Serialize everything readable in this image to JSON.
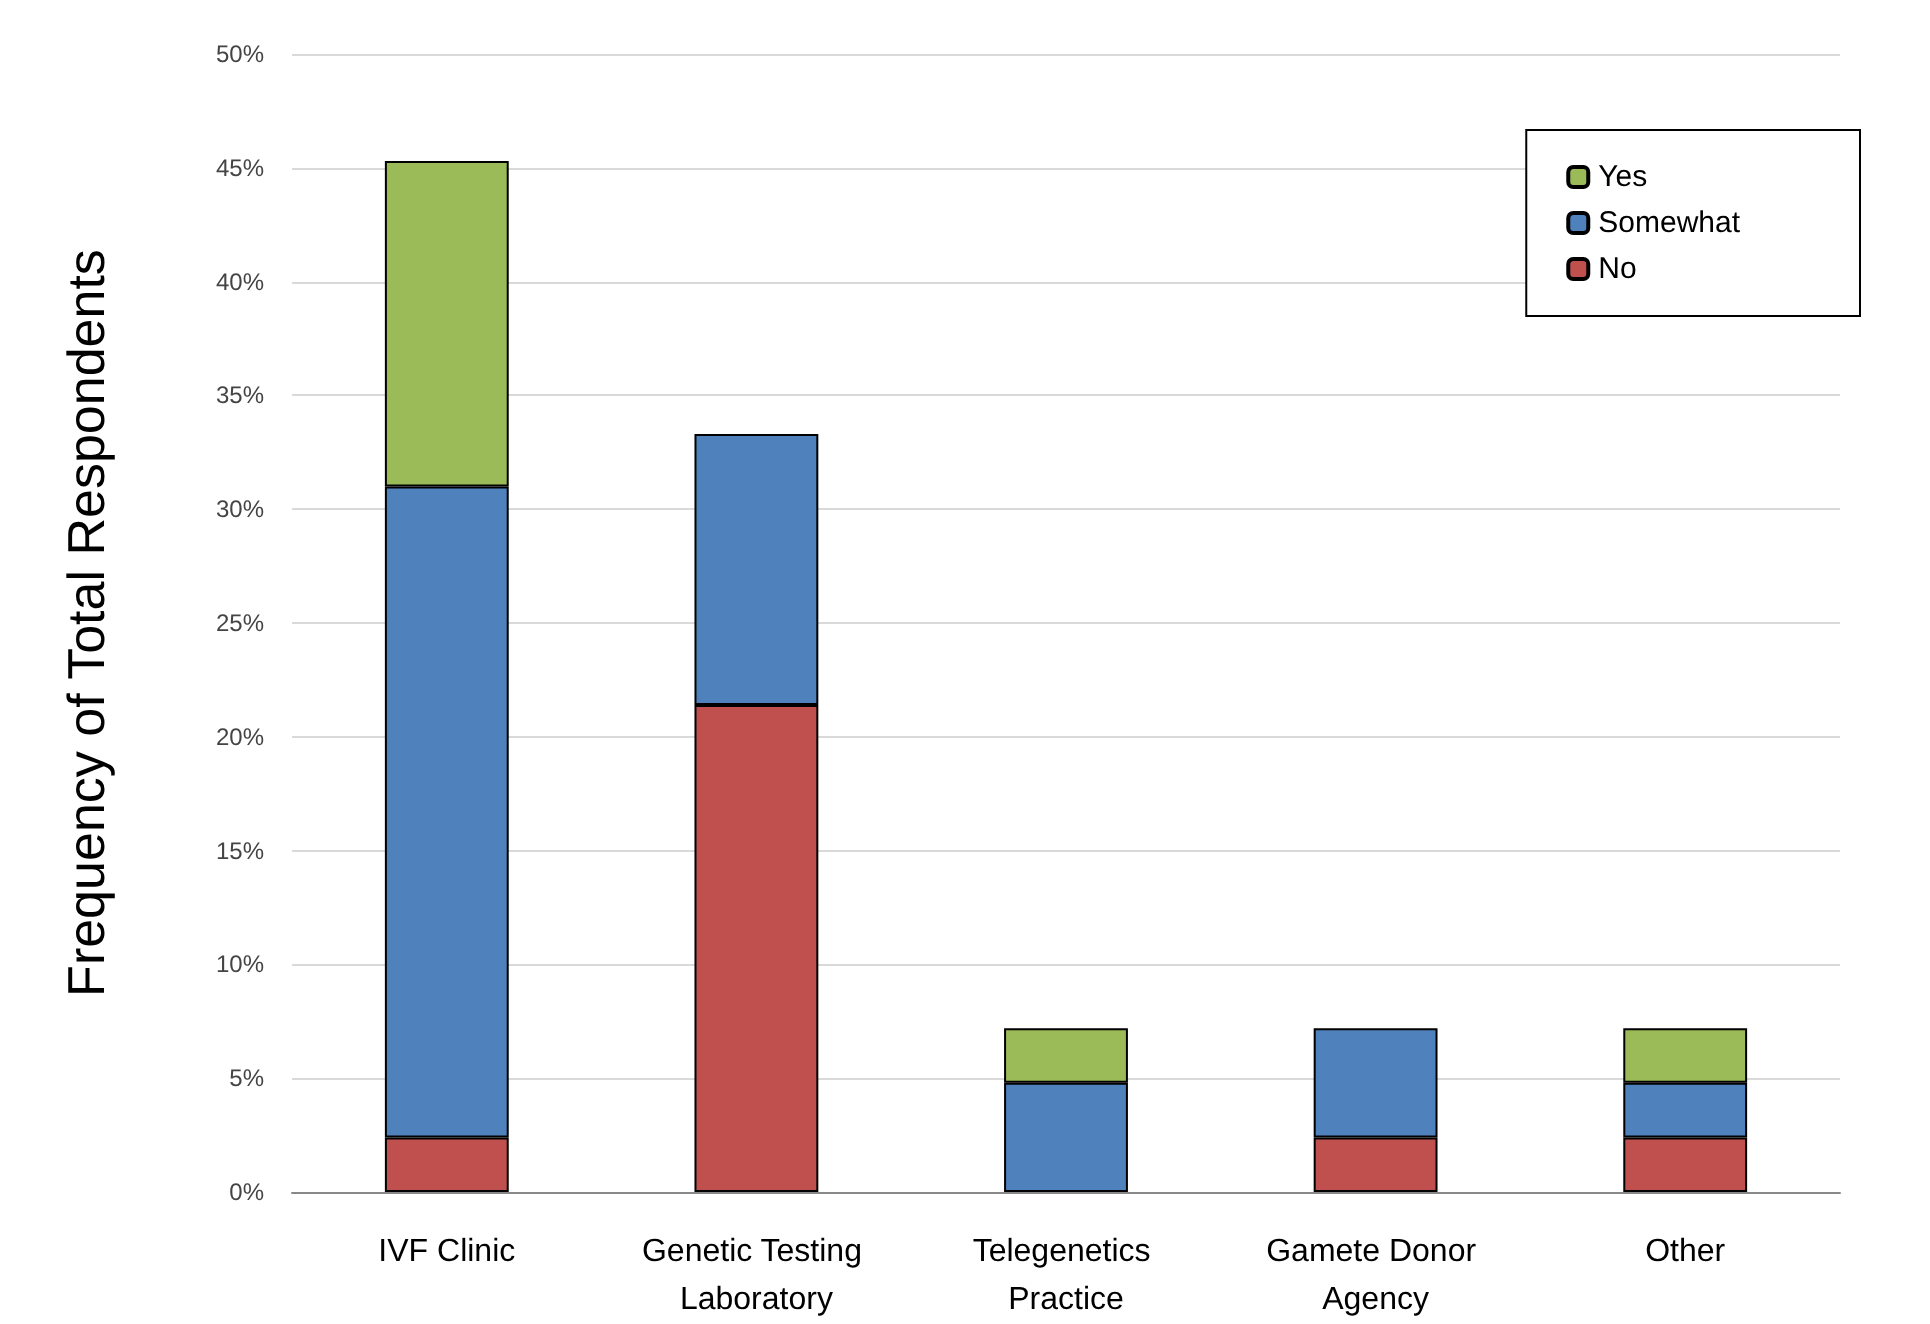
{
  "chart_data": {
    "type": "bar",
    "ylabel": "Frequency of Total Respondents",
    "categories": [
      "IVF Clinic",
      "Genetic Testing Laboratory",
      "Telegenetics Practice",
      "Gamete Donor Agency",
      "Other"
    ],
    "series": [
      {
        "name": "No",
        "color": "#c0504d",
        "values": [
          2.4,
          21.4,
          null,
          2.4,
          2.4
        ]
      },
      {
        "name": "Somewhat",
        "color": "#4f81bd",
        "values": [
          28.6,
          11.9,
          4.8,
          4.8,
          2.4
        ]
      },
      {
        "name": "Yes",
        "color": "#9bbb59",
        "values": [
          14.3,
          null,
          2.4,
          null,
          2.4
        ]
      }
    ],
    "stacked": true,
    "ylim": [
      0,
      50
    ],
    "yticks": [
      {
        "value": 0,
        "label": "0%"
      },
      {
        "value": 5,
        "label": "5%"
      },
      {
        "value": 10,
        "label": "10%"
      },
      {
        "value": 15,
        "label": "15%"
      },
      {
        "value": 20,
        "label": "20%"
      },
      {
        "value": 25,
        "label": "25%"
      },
      {
        "value": 30,
        "label": "30%"
      },
      {
        "value": 35,
        "label": "35%"
      },
      {
        "value": 40,
        "label": "40%"
      },
      {
        "value": 45,
        "label": "45%"
      },
      {
        "value": 50,
        "label": "50%"
      }
    ],
    "grid": "y",
    "legend": "top right"
  }
}
